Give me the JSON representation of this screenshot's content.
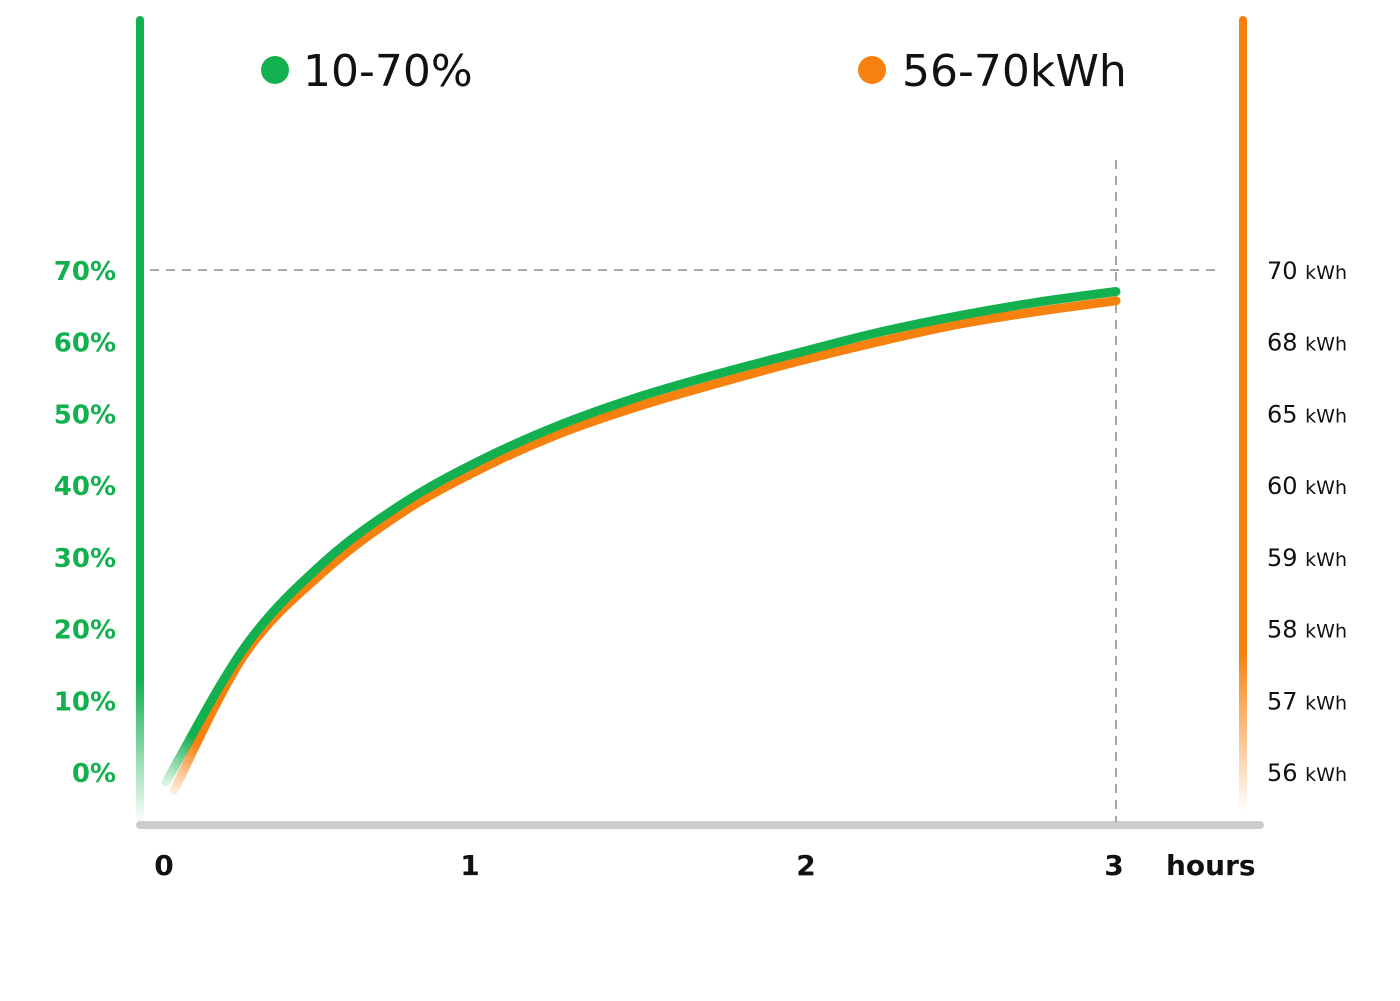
{
  "chart_data": {
    "type": "line",
    "x": [
      0,
      0.25,
      0.5,
      0.75,
      1,
      1.25,
      1.5,
      1.75,
      2,
      2.25,
      2.5,
      2.75,
      3
    ],
    "x_tick_labels": [
      "0",
      "1",
      "2",
      "3"
    ],
    "x_unit": "hours",
    "xlim": [
      0,
      3
    ],
    "series": [
      {
        "name": "10-70%",
        "axis": "left",
        "color": "#12b04f",
        "values": [
          0,
          17.5,
          29.3,
          37.5,
          43.6,
          48.5,
          52.4,
          55.6,
          58.5,
          61.3,
          63.6,
          65.5,
          67
        ]
      },
      {
        "name": "56-70kWh",
        "axis": "right",
        "color": "#f7810f",
        "values": [
          0,
          16.5,
          28,
          36.3,
          42.4,
          47.3,
          51.1,
          54.3,
          57.3,
          60.0,
          62.4,
          64.2,
          65.7
        ]
      }
    ],
    "y_left_ticks": [
      "0%",
      "10%",
      "20%",
      "30%",
      "40%",
      "50%",
      "60%",
      "70%"
    ],
    "y_right_ticks": [
      {
        "value": "56",
        "unit": "kWh"
      },
      {
        "value": "57",
        "unit": "kWh"
      },
      {
        "value": "58",
        "unit": "kWh"
      },
      {
        "value": "59",
        "unit": "kWh"
      },
      {
        "value": "60",
        "unit": "kWh"
      },
      {
        "value": "65",
        "unit": "kWh"
      },
      {
        "value": "68",
        "unit": "kWh"
      },
      {
        "value": "70",
        "unit": "kWh"
      }
    ],
    "ylim": [
      0,
      70
    ],
    "reference_lines": {
      "horizontal_at": 70,
      "vertical_at": 3,
      "style": "dashed"
    },
    "legend": [
      {
        "label": "10-70%",
        "color": "#12b04f"
      },
      {
        "label": "56-70kWh",
        "color": "#f7810f"
      }
    ],
    "colors": {
      "left_axis": "#12b04f",
      "right_axis": "#f7810f",
      "x_axis": "#cccccc"
    }
  }
}
